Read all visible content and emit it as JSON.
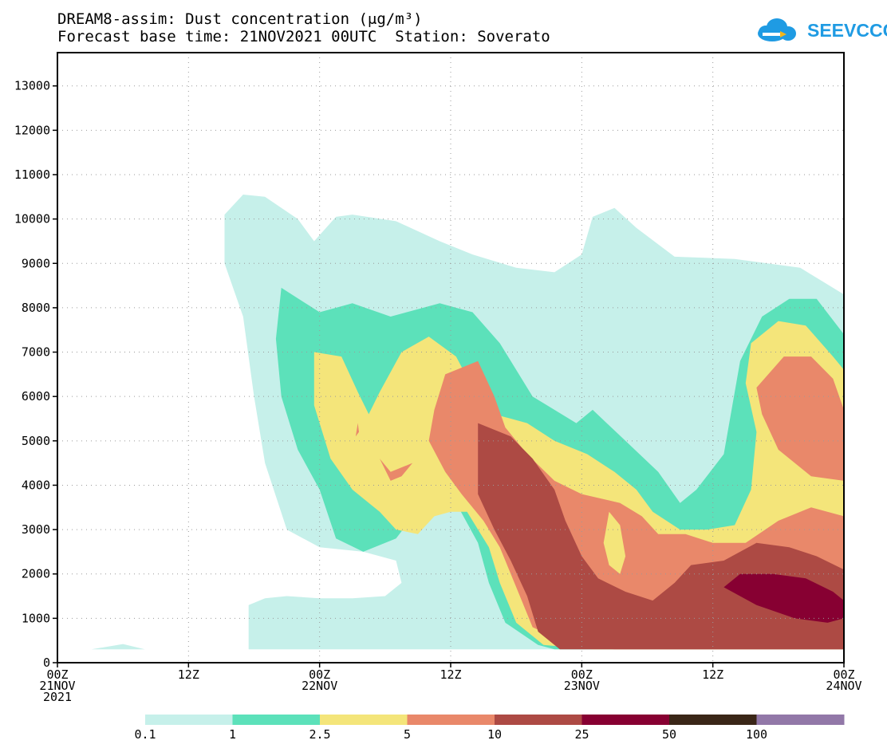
{
  "header": {
    "title_line1": "DREAM8-assim: Dust concentration (μg/m³)",
    "title_line2": "Forecast base time: 21NOV2021 00UTC  Station: Soverato",
    "logo_text": "SEEVCCC"
  },
  "chart_data": {
    "type": "heatmap",
    "title": "DREAM8-assim: Dust concentration (μg/m³)",
    "subtitle": "Forecast base time: 21NOV2021 00UTC  Station: Soverato",
    "xlabel": "",
    "ylabel": "",
    "x_range_hours": [
      0,
      72
    ],
    "ylim": [
      0,
      13750
    ],
    "yticks": [
      0,
      1000,
      2000,
      3000,
      4000,
      5000,
      6000,
      7000,
      8000,
      9000,
      10000,
      11000,
      12000,
      13000
    ],
    "xticks": [
      {
        "hour": 0,
        "label1": "00Z",
        "label2": "21NOV",
        "label3": "2021"
      },
      {
        "hour": 12,
        "label1": "12Z",
        "label2": "",
        "label3": ""
      },
      {
        "hour": 24,
        "label1": "00Z",
        "label2": "22NOV",
        "label3": ""
      },
      {
        "hour": 36,
        "label1": "12Z",
        "label2": "",
        "label3": ""
      },
      {
        "hour": 48,
        "label1": "00Z",
        "label2": "23NOV",
        "label3": ""
      },
      {
        "hour": 60,
        "label1": "12Z",
        "label2": "",
        "label3": ""
      },
      {
        "hour": 72,
        "label1": "00Z",
        "label2": "24NOV",
        "label3": ""
      }
    ],
    "grid": true,
    "colorbar": {
      "levels": [
        "0.1",
        "1",
        "2.5",
        "5",
        "10",
        "25",
        "50",
        "100"
      ],
      "colors": [
        "#c6f0ea",
        "#5ce1ba",
        "#f4e57a",
        "#e9886a",
        "#ad4a44",
        "#870032",
        "#3a2617",
        "#9278a8"
      ]
    },
    "contours": [
      {
        "level": "0.1",
        "color": "#c6f0ea",
        "points": [
          [
            3.1,
            300
          ],
          [
            6,
            420
          ],
          [
            8,
            300
          ]
        ]
      },
      {
        "level": "0.1",
        "color": "#c6f0ea",
        "points": [
          [
            17.5,
            300
          ],
          [
            17.5,
            1300
          ],
          [
            19,
            1450
          ],
          [
            21,
            1500
          ],
          [
            24,
            1450
          ],
          [
            27,
            1450
          ],
          [
            30,
            1500
          ],
          [
            31.5,
            1800
          ],
          [
            31,
            2300
          ],
          [
            28,
            2500
          ],
          [
            24,
            2600
          ],
          [
            21,
            3000
          ],
          [
            19,
            4500
          ],
          [
            18,
            6000
          ],
          [
            17,
            7800
          ],
          [
            15.3,
            9000
          ],
          [
            15.3,
            10100
          ],
          [
            17,
            10550
          ],
          [
            19,
            10500
          ],
          [
            22,
            10000
          ],
          [
            23.5,
            9500
          ],
          [
            25.5,
            10050
          ],
          [
            27,
            10100
          ],
          [
            31,
            9950
          ],
          [
            35,
            9500
          ],
          [
            38,
            9200
          ],
          [
            42,
            8900
          ],
          [
            45.5,
            8800
          ],
          [
            48,
            9200
          ],
          [
            49,
            10050
          ],
          [
            51,
            10250
          ],
          [
            53,
            9800
          ],
          [
            56.5,
            9150
          ],
          [
            62,
            9100
          ],
          [
            68,
            8900
          ],
          [
            70,
            8600
          ],
          [
            72,
            8300
          ],
          [
            72,
            300
          ]
        ]
      },
      {
        "level": "1",
        "color": "#5ce1ba",
        "points": [
          [
            20.5,
            8450
          ],
          [
            24,
            7900
          ],
          [
            27,
            8100
          ],
          [
            30.5,
            7800
          ],
          [
            35,
            8100
          ],
          [
            38,
            7900
          ],
          [
            40.5,
            7200
          ],
          [
            43.5,
            6000
          ],
          [
            47.5,
            5400
          ],
          [
            49,
            5700
          ],
          [
            52,
            5000
          ],
          [
            55,
            4300
          ],
          [
            57,
            3600
          ],
          [
            58.5,
            3900
          ],
          [
            61,
            4700
          ],
          [
            62.5,
            6800
          ],
          [
            64.5,
            7800
          ],
          [
            67,
            8200
          ],
          [
            69.5,
            8200
          ],
          [
            72,
            7400
          ],
          [
            72,
            300
          ],
          [
            45.5,
            300
          ],
          [
            44,
            400
          ],
          [
            41,
            900
          ],
          [
            39.5,
            1800
          ],
          [
            38.5,
            2700
          ],
          [
            36.5,
            3600
          ],
          [
            35,
            3900
          ],
          [
            33.5,
            3600
          ],
          [
            31,
            2800
          ],
          [
            28,
            2500
          ],
          [
            25.5,
            2800
          ],
          [
            24,
            3900
          ],
          [
            22,
            4800
          ],
          [
            20.5,
            6000
          ],
          [
            20,
            7300
          ]
        ]
      },
      {
        "level": "2.5",
        "color": "#f4e57a",
        "points": [
          [
            23.5,
            7000
          ],
          [
            26,
            6900
          ],
          [
            27.5,
            6100
          ],
          [
            28.5,
            5600
          ],
          [
            29.5,
            6100
          ],
          [
            31.5,
            7000
          ],
          [
            34,
            7350
          ],
          [
            36.5,
            6900
          ],
          [
            38,
            6200
          ],
          [
            40,
            5600
          ],
          [
            43,
            5400
          ],
          [
            45.5,
            5000
          ],
          [
            48.5,
            4700
          ],
          [
            51,
            4300
          ],
          [
            53,
            3900
          ],
          [
            54.5,
            3400
          ],
          [
            57,
            3000
          ],
          [
            59.5,
            3000
          ],
          [
            62,
            3100
          ],
          [
            63.5,
            3900
          ],
          [
            64,
            5200
          ],
          [
            63,
            6300
          ],
          [
            63.5,
            7200
          ],
          [
            66,
            7700
          ],
          [
            68.5,
            7600
          ],
          [
            71,
            6900
          ],
          [
            72,
            6600
          ],
          [
            72,
            300
          ],
          [
            49,
            300
          ],
          [
            44.5,
            400
          ],
          [
            42,
            900
          ],
          [
            40.5,
            1800
          ],
          [
            39.5,
            2600
          ],
          [
            37.5,
            3400
          ],
          [
            36,
            3400
          ],
          [
            34.5,
            3300
          ],
          [
            33,
            2900
          ],
          [
            31,
            3000
          ],
          [
            29.5,
            3400
          ],
          [
            27,
            3900
          ],
          [
            25,
            4600
          ],
          [
            23.5,
            5800
          ],
          [
            23.5,
            6600
          ]
        ]
      },
      {
        "level": "5",
        "color": "#e9886a",
        "points": [
          [
            35.5,
            6500
          ],
          [
            38.5,
            6800
          ],
          [
            40,
            6000
          ],
          [
            41,
            5300
          ],
          [
            43,
            4700
          ],
          [
            45.5,
            4100
          ],
          [
            48,
            3800
          ],
          [
            51.5,
            3600
          ],
          [
            53.5,
            3300
          ],
          [
            55,
            2900
          ],
          [
            57.5,
            2900
          ],
          [
            60,
            2700
          ],
          [
            63,
            2700
          ],
          [
            66,
            3200
          ],
          [
            69,
            3500
          ],
          [
            72,
            3300
          ],
          [
            72,
            300
          ],
          [
            51,
            300
          ],
          [
            47,
            400
          ],
          [
            43.5,
            800
          ],
          [
            42,
            1700
          ],
          [
            40.5,
            2600
          ],
          [
            39,
            3200
          ],
          [
            37,
            3800
          ],
          [
            35.5,
            4300
          ],
          [
            34,
            5000
          ],
          [
            34.5,
            5700
          ]
        ]
      },
      {
        "level": "5",
        "color": "#e9886a",
        "points": [
          [
            29.5,
            4600
          ],
          [
            30.5,
            4300
          ],
          [
            32.5,
            4500
          ],
          [
            31.5,
            4200
          ],
          [
            30.5,
            4100
          ]
        ]
      },
      {
        "level": "5",
        "color": "#e9886a",
        "points": [
          [
            27.5,
            5400
          ],
          [
            27.6,
            5200
          ],
          [
            27.3,
            5100
          ]
        ]
      },
      {
        "level": "5",
        "color": "#e9886a",
        "points": [
          [
            64,
            6200
          ],
          [
            66.5,
            6900
          ],
          [
            69,
            6900
          ],
          [
            71,
            6400
          ],
          [
            72,
            5700
          ],
          [
            72,
            4100
          ],
          [
            69,
            4200
          ],
          [
            66,
            4800
          ],
          [
            64.5,
            5600
          ]
        ]
      },
      {
        "level": "10",
        "color": "#ad4a44",
        "points": [
          [
            38.5,
            5400
          ],
          [
            41.5,
            5100
          ],
          [
            43.5,
            4600
          ],
          [
            45.5,
            3900
          ],
          [
            46.5,
            3200
          ],
          [
            48,
            2400
          ],
          [
            49.5,
            1900
          ],
          [
            52,
            1600
          ],
          [
            54.5,
            1400
          ],
          [
            56.5,
            1800
          ],
          [
            58,
            2200
          ],
          [
            61,
            2300
          ],
          [
            64,
            2700
          ],
          [
            67,
            2600
          ],
          [
            69.5,
            2400
          ],
          [
            72,
            2100
          ],
          [
            72,
            300
          ],
          [
            53,
            300
          ],
          [
            49.5,
            300
          ],
          [
            46,
            300
          ],
          [
            44,
            700
          ],
          [
            43,
            1500
          ],
          [
            41.5,
            2300
          ],
          [
            40,
            3000
          ],
          [
            38.5,
            3800
          ],
          [
            38.5,
            4700
          ]
        ]
      },
      {
        "level": "25",
        "color": "#870032",
        "points": [
          [
            61,
            1700
          ],
          [
            62.5,
            2000
          ],
          [
            65.5,
            2000
          ],
          [
            68.5,
            1900
          ],
          [
            71,
            1600
          ],
          [
            72,
            1400
          ],
          [
            72,
            1000
          ],
          [
            70.5,
            900
          ],
          [
            67.5,
            1000
          ],
          [
            64,
            1300
          ]
        ]
      },
      {
        "level": "2.5",
        "color": "#f4e57a",
        "points": [
          [
            50.5,
            3400
          ],
          [
            51.5,
            3100
          ],
          [
            52,
            2400
          ],
          [
            51.5,
            2000
          ],
          [
            50.5,
            2200
          ],
          [
            50,
            2700
          ]
        ]
      }
    ]
  }
}
